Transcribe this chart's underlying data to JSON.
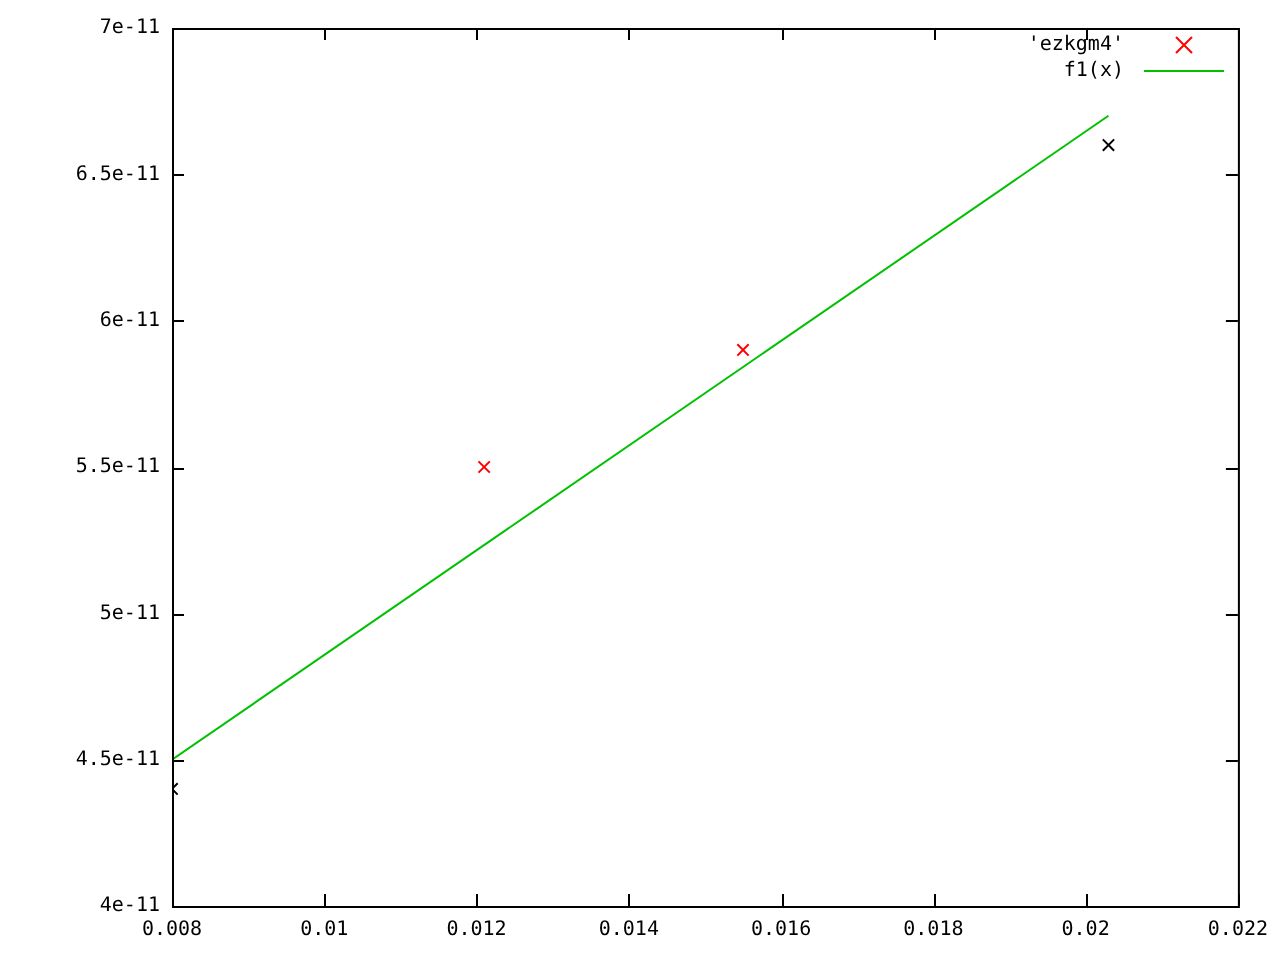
{
  "chart_data": {
    "type": "scatter",
    "legend": "top right",
    "grid": false,
    "xlim": [
      0.008,
      0.022
    ],
    "xticks": [
      0.008,
      0.01,
      0.012,
      0.014,
      0.016,
      0.018,
      0.02,
      0.022
    ],
    "ylim": [
      4e-11,
      7e-11
    ],
    "yticks": [
      4e-11,
      4.5e-11,
      5e-11,
      5.5e-11,
      6e-11,
      6.5e-11,
      7e-11
    ],
    "series": [
      {
        "name": "'ezkgm4'",
        "marker": "cross",
        "color": "#ff0000",
        "colors": [
          "#000000",
          "#ff0000",
          "#ff0000",
          "#000000"
        ],
        "x": [
          0.008,
          0.0121,
          0.0155,
          0.0203
        ],
        "values": [
          4.4e-11,
          5.5e-11,
          5.9e-11,
          6.6e-11
        ]
      },
      {
        "name": "f1(x)",
        "type": "line",
        "marker": "none",
        "color": "#00c000",
        "x": [
          0.008,
          0.0203
        ],
        "values": [
          4.5e-11,
          6.7e-11
        ]
      }
    ]
  }
}
